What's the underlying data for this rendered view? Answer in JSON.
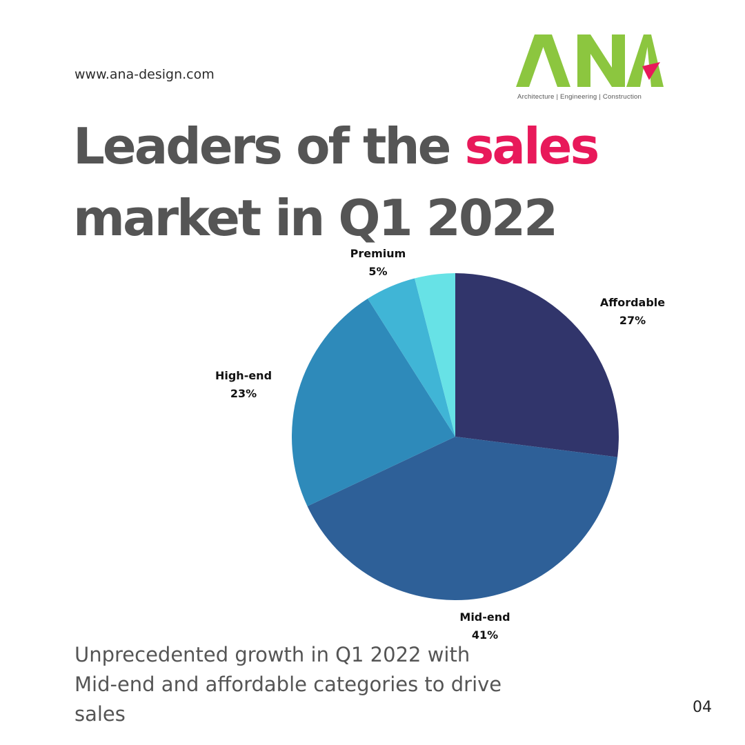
{
  "website": "www.ana-design.com",
  "logo": {
    "letters": "ANA",
    "tagline": "Architecture  |  Engineering  |  Construction",
    "colors": {
      "letters": "#8cc63f",
      "accent": "#e8195a"
    }
  },
  "headline": {
    "part1": "Leaders of the ",
    "accent": "sales",
    "part2": "market in Q1 2022"
  },
  "chart_data": {
    "type": "pie",
    "title": "",
    "slices": [
      {
        "label": "Affordable",
        "value": 27,
        "display": "27%",
        "color": "#31356b"
      },
      {
        "label": "Mid-end",
        "value": 41,
        "display": "41%",
        "color": "#2e6098"
      },
      {
        "label": "High-end",
        "value": 23,
        "display": "23%",
        "color": "#2e8aba"
      },
      {
        "label": "Premium",
        "value": 5,
        "display": "5%",
        "color": "#40b5d6"
      },
      {
        "label": "",
        "value": 4,
        "display": "",
        "color": "#67e2e6"
      }
    ]
  },
  "subtitle": "Unprecedented growth in Q1 2022 with  Mid-end and affordable categories to drive sales",
  "page_number": "04"
}
